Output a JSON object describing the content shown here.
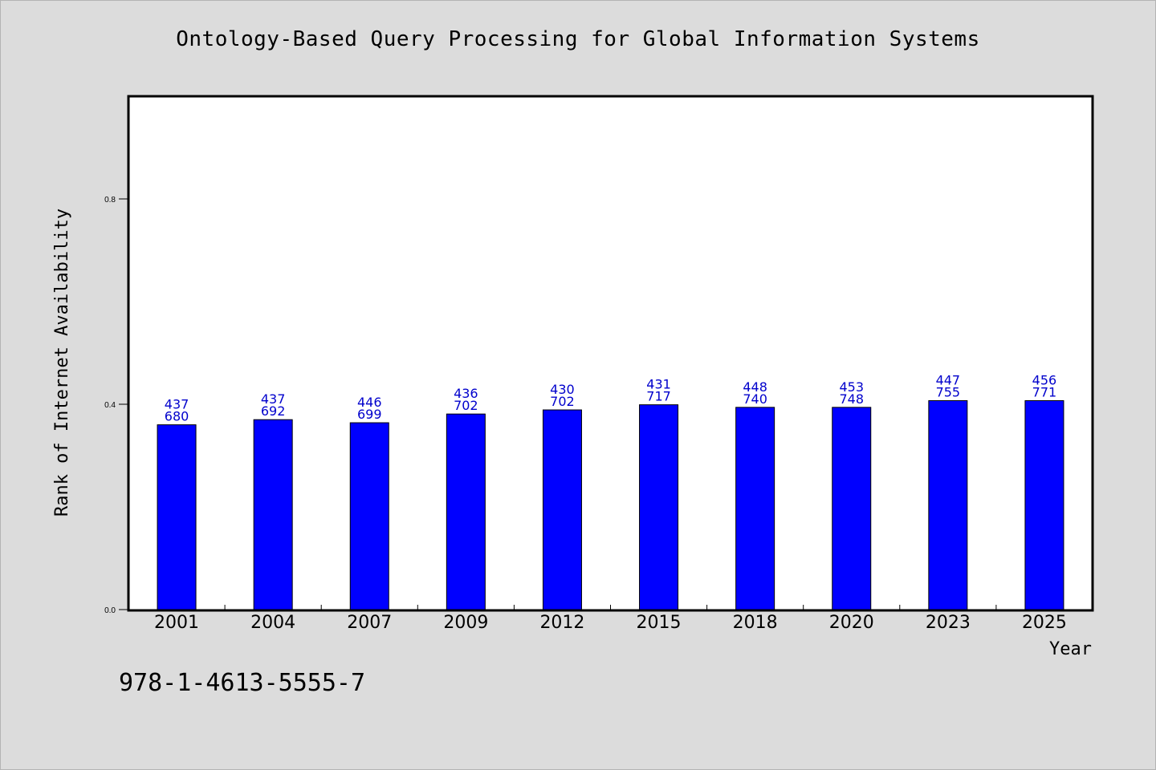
{
  "chart_data": {
    "type": "bar",
    "title": "Ontology-Based Query Processing for Global Information Systems",
    "xlabel": "Year",
    "ylabel": "Rank of Internet Availability",
    "categories": [
      "2001",
      "2004",
      "2007",
      "2009",
      "2012",
      "2015",
      "2018",
      "2020",
      "2023",
      "2025"
    ],
    "values": [
      0.36,
      0.37,
      0.364,
      0.381,
      0.389,
      0.399,
      0.394,
      0.394,
      0.407,
      0.407
    ],
    "data_labels": [
      [
        "437",
        "680"
      ],
      [
        "437",
        "692"
      ],
      [
        "446",
        "699"
      ],
      [
        "436",
        "702"
      ],
      [
        "430",
        "702"
      ],
      [
        "431",
        "717"
      ],
      [
        "448",
        "740"
      ],
      [
        "453",
        "748"
      ],
      [
        "447",
        "755"
      ],
      [
        "456",
        "771"
      ]
    ],
    "ylim": [
      0,
      1.0
    ],
    "yticks": [
      "0.0",
      "0.4",
      "0.8"
    ],
    "bar_color": "#0000ff",
    "label_color": "#0000cc",
    "grid": false,
    "legend": "none"
  },
  "footer": {
    "isbn": "978-1-4613-5555-7"
  }
}
